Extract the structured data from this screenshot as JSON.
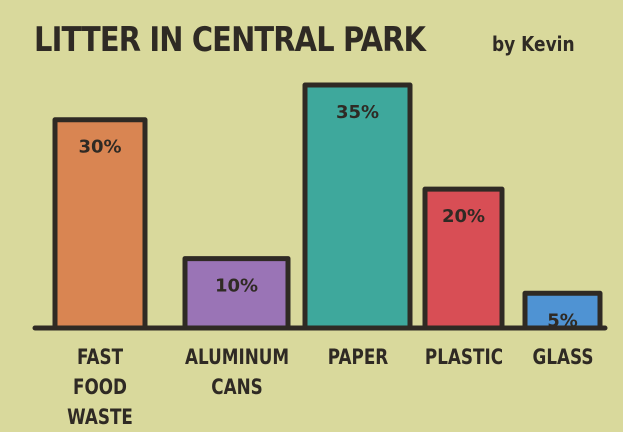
{
  "chart_data": {
    "type": "bar",
    "title": "LITTER IN CENTRAL PARK",
    "subtitle": "by Kevin",
    "categories": [
      "FAST FOOD WASTE",
      "ALUMINUM CANS",
      "PAPER",
      "PLASTIC",
      "GLASS"
    ],
    "values": [
      30,
      10,
      35,
      20,
      5
    ],
    "value_labels": [
      "30%",
      "10%",
      "35%",
      "20%",
      "5%"
    ],
    "colors": [
      "#d98552",
      "#9a74b6",
      "#3ea89c",
      "#d84e55",
      "#4f93d3"
    ]
  }
}
